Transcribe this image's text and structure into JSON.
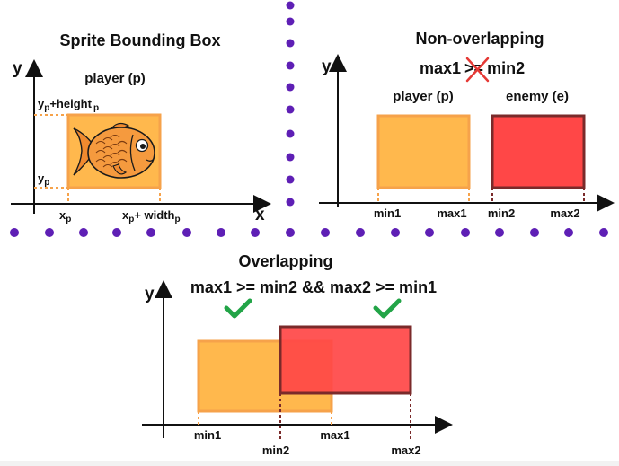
{
  "panels": {
    "sprite": {
      "title": "Sprite Bounding Box",
      "y_axis": "y",
      "x_axis": "x",
      "player": "player (p)",
      "y_top_main": "y",
      "y_top_sub": "p",
      "y_top_rest": "+height",
      "y_top_rest_sub": "p",
      "y_bottom_main": "y",
      "y_bottom_sub": "p",
      "x_left_main": "x",
      "x_left_sub": "p",
      "x_right_main": "x",
      "x_right_sub": "p",
      "x_right_rest": "+ width",
      "x_right_rest_sub": "p"
    },
    "non_overlapping": {
      "title": "Non-overlapping",
      "y_axis": "y",
      "condition_left": "max1",
      "condition_op": ">=",
      "condition_right": "min2",
      "player": "player (p)",
      "enemy": "enemy (e)",
      "ticks": [
        "min1",
        "max1",
        "min2",
        "max2"
      ]
    },
    "overlapping": {
      "title": "Overlapping",
      "y_axis": "y",
      "condition": "max1 >= min2 && max2 >= min1",
      "ticks": [
        "min1",
        "min2",
        "max1",
        "max2"
      ]
    }
  },
  "colors": {
    "player_fill": "#FFB84D",
    "player_stroke": "#F6A24A",
    "enemy_fill": "#FF4747",
    "enemy_stroke": "#7A2A2A",
    "separator_dots": "#5E1FB5",
    "check": "#22A447",
    "cross": "#E53935"
  },
  "icons": [
    "fish-icon",
    "check-icon",
    "cross-icon"
  ]
}
